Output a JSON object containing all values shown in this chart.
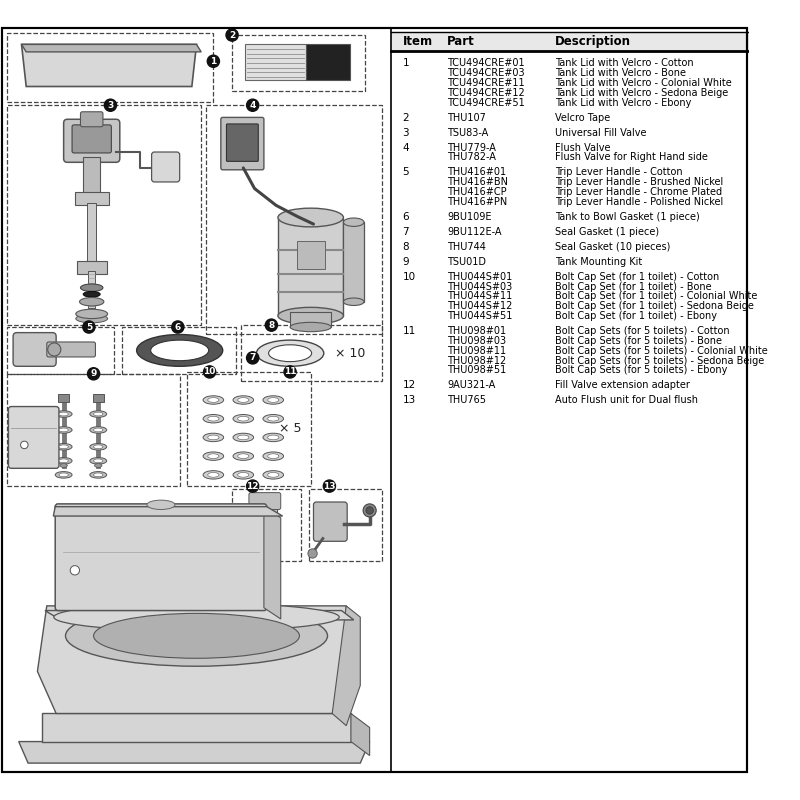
{
  "items": [
    {
      "item": "1",
      "parts": [
        "TCU494CRE#01",
        "TCU494CRE#03",
        "TCU494CRE#11",
        "TCU494CRE#12",
        "TCU494CRE#51"
      ],
      "descs": [
        "Tank Lid with Velcro - Cotton",
        "Tank Lid with Velcro - Bone",
        "Tank Lid with Velcro - Colonial White",
        "Tank Lid with Velcro - Sedona Beige",
        "Tank Lid with Velcro - Ebony"
      ]
    },
    {
      "item": "2",
      "parts": [
        "THU107"
      ],
      "descs": [
        "Velcro Tape"
      ]
    },
    {
      "item": "3",
      "parts": [
        "TSU83-A"
      ],
      "descs": [
        "Universal Fill Valve"
      ]
    },
    {
      "item": "4",
      "parts": [
        "THU779-A",
        "THU782-A"
      ],
      "descs": [
        "Flush Valve",
        "Flush Valve for Right Hand side"
      ]
    },
    {
      "item": "5",
      "parts": [
        "THU416#01",
        "THU416#BN",
        "THU416#CP",
        "THU416#PN"
      ],
      "descs": [
        "Trip Lever Handle - Cotton",
        "Trip Lever Handle - Brushed Nickel",
        "Trip Lever Handle - Chrome Plated",
        "Trip Lever Handle - Polished Nickel"
      ]
    },
    {
      "item": "6",
      "parts": [
        "9BU109E"
      ],
      "descs": [
        "Tank to Bowl Gasket (1 piece)"
      ]
    },
    {
      "item": "7",
      "parts": [
        "9BU112E-A"
      ],
      "descs": [
        "Seal Gasket (1 piece)"
      ]
    },
    {
      "item": "8",
      "parts": [
        "THU744"
      ],
      "descs": [
        "Seal Gasket (10 pieces)"
      ]
    },
    {
      "item": "9",
      "parts": [
        "TSU01D"
      ],
      "descs": [
        "Tank Mounting Kit"
      ]
    },
    {
      "item": "10",
      "parts": [
        "THU044S#01",
        "THU044S#03",
        "THU044S#11",
        "THU044S#12",
        "THU044S#51"
      ],
      "descs": [
        "Bolt Cap Set (for 1 toilet) - Cotton",
        "Bolt Cap Set (for 1 toilet) - Bone",
        "Bolt Cap Set (for 1 toilet) - Colonial White",
        "Bolt Cap Set (for 1 toilet) - Sedona Beige",
        "Bolt Cap Set (for 1 toilet) - Ebony"
      ]
    },
    {
      "item": "11",
      "parts": [
        "THU098#01",
        "THU098#03",
        "THU098#11",
        "THU098#12",
        "THU098#51"
      ],
      "descs": [
        "Bolt Cap Sets (for 5 toilets) - Cotton",
        "Bolt Cap Sets (for 5 toilets) - Bone",
        "Bolt Cap Sets (for 5 toilets) - Colonial White",
        "Bolt Cap Sets (for 5 toilets) - Sedona Beige",
        "Bolt Cap Sets (for 5 toilets) - Ebony"
      ]
    },
    {
      "item": "12",
      "parts": [
        "9AU321-A"
      ],
      "descs": [
        "Fill Valve extension adapter"
      ]
    },
    {
      "item": "13",
      "parts": [
        "THU765"
      ],
      "descs": [
        "Auto Flush unit for Dual flush"
      ]
    }
  ]
}
